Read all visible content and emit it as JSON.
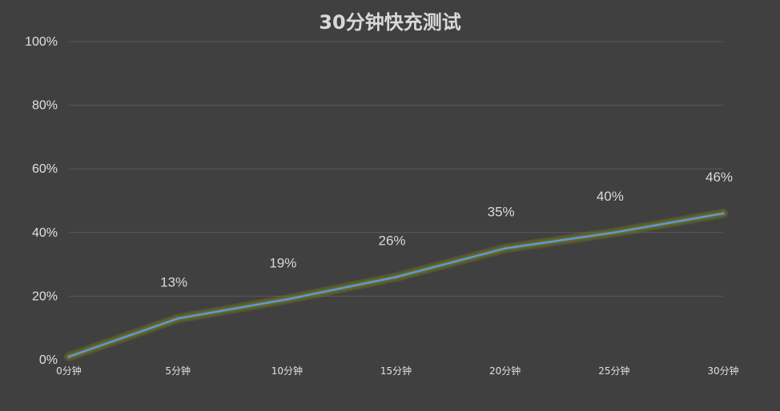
{
  "chart_data": {
    "type": "line",
    "title": "30分钟快充测试",
    "categories": [
      "0分钟",
      "5分钟",
      "10分钟",
      "15分钟",
      "20分钟",
      "25分钟",
      "30分钟"
    ],
    "series": [
      {
        "values": [
          1,
          13,
          19,
          26,
          35,
          40,
          46
        ],
        "color": "#5b9bd5",
        "glow_color": "#7a7a20"
      }
    ],
    "data_labels": [
      "",
      "13%",
      "19%",
      "26%",
      "35%",
      "40%",
      "46%"
    ],
    "yticks": [
      "0%",
      "20%",
      "40%",
      "60%",
      "80%",
      "100%"
    ],
    "ylim": [
      0,
      100
    ],
    "grid": true,
    "background": "#404040"
  }
}
